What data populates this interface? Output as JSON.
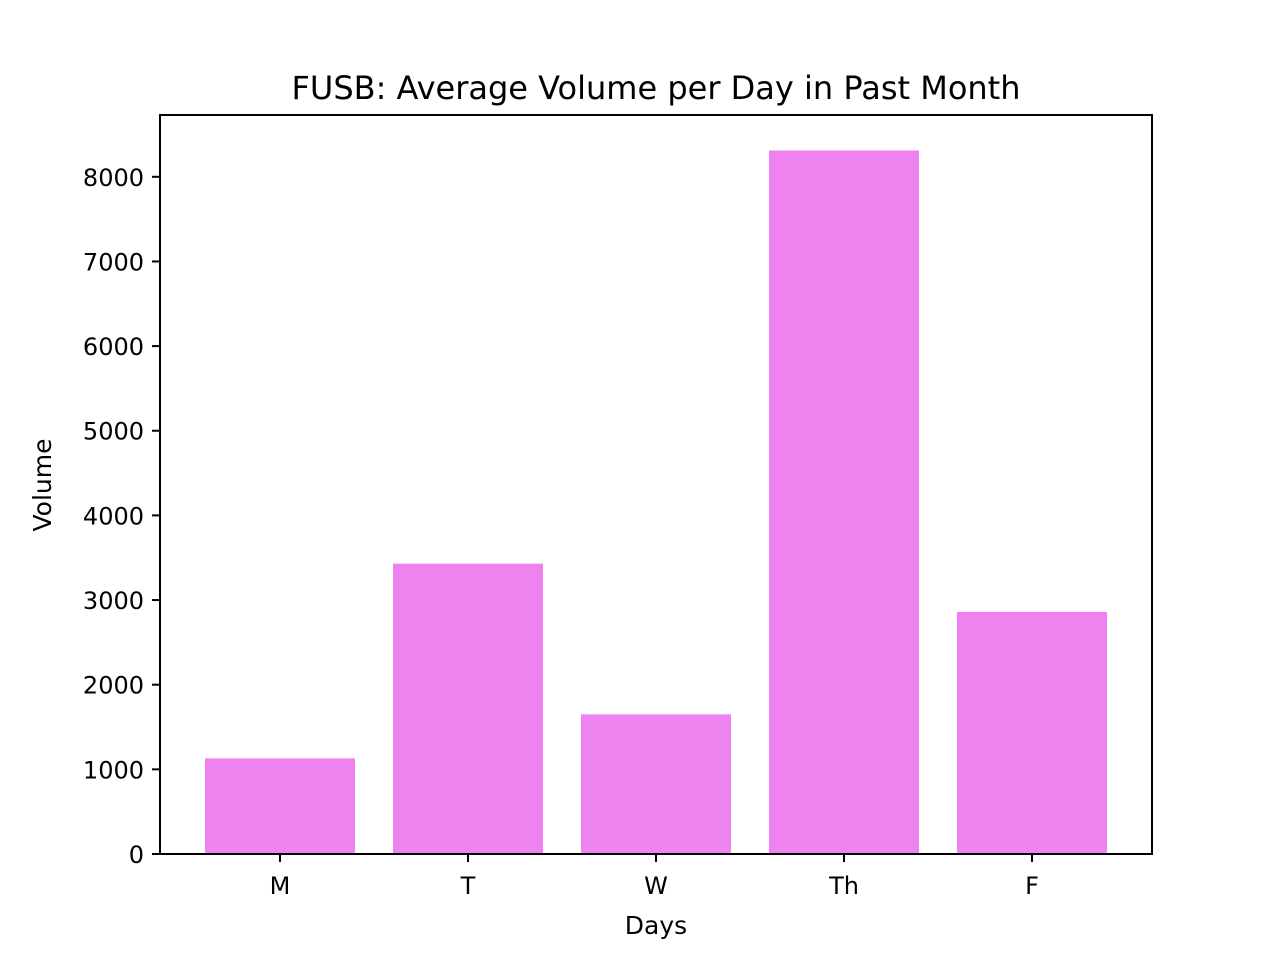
{
  "chart_data": {
    "type": "bar",
    "title": "FUSB: Average Volume per Day in Past Month",
    "xlabel": "Days",
    "ylabel": "Volume",
    "categories": [
      "M",
      "T",
      "W",
      "Th",
      "F"
    ],
    "values": [
      1130,
      3430,
      1650,
      8310,
      2860
    ],
    "ylim": [
      0,
      8730
    ],
    "yticks": [
      0,
      1000,
      2000,
      3000,
      4000,
      5000,
      6000,
      7000,
      8000
    ],
    "bar_color": "#ee82ee",
    "grid": false,
    "legend": "none"
  }
}
